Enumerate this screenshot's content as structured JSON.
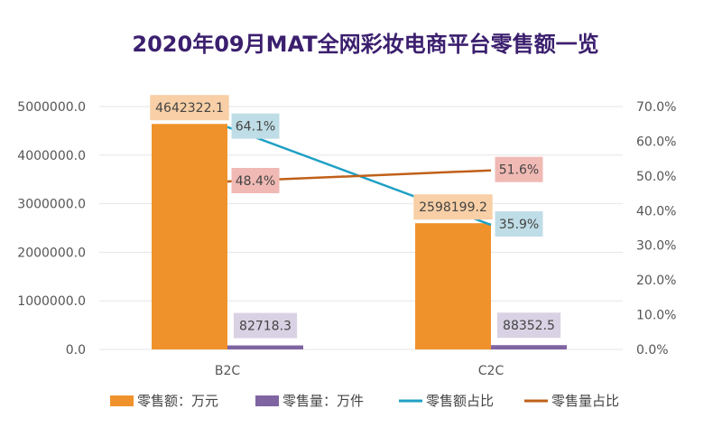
{
  "chart_data": {
    "type": "bar",
    "title": "2020年09月MAT全网彩妆电商平台零售额一览",
    "categories": [
      "B2C",
      "C2C"
    ],
    "y_left": {
      "ticks": [
        "0.0",
        "1000000.0",
        "2000000.0",
        "3000000.0",
        "4000000.0",
        "5000000.0"
      ],
      "range": [
        0,
        5000000
      ]
    },
    "y_right": {
      "ticks": [
        "0.0%",
        "10.0%",
        "20.0%",
        "30.0%",
        "40.0%",
        "50.0%",
        "60.0%",
        "70.0%"
      ],
      "range": [
        0,
        70
      ]
    },
    "grid": true,
    "legend_position": "bottom",
    "bar_series": [
      {
        "name": "零售额：万元",
        "values": [
          4642322.1,
          2598199.2
        ],
        "labels": [
          "4642322.1",
          "2598199.2"
        ],
        "color": "#f0922b",
        "label_bg": "#f8cfa6"
      },
      {
        "name": "零售量：万件",
        "values": [
          82718.3,
          88352.5
        ],
        "labels": [
          "82718.3",
          "88352.5"
        ],
        "color": "#8064a2",
        "label_bg": "#d9d2e4"
      }
    ],
    "line_series": [
      {
        "name": "零售额占比",
        "values": [
          64.1,
          35.9
        ],
        "labels": [
          "64.1%",
          "35.9%"
        ],
        "color": "#1ea0c4",
        "label_bg": "#bfdde6"
      },
      {
        "name": "零售量占比",
        "values": [
          48.4,
          51.6
        ],
        "labels": [
          "48.4%",
          "51.6%"
        ],
        "color": "#c0601a",
        "label_bg": "#f0b9b4"
      }
    ]
  }
}
